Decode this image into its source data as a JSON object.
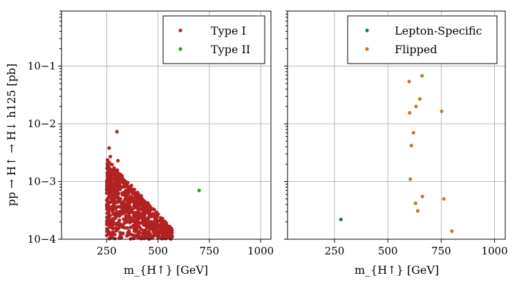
{
  "chart_data": [
    {
      "type": "scatter",
      "panel": "left",
      "xlabel": "m_{H↑} [GeV]",
      "ylabel": "pp → H↑ → H↓ h125 [pb]",
      "xscale": "linear",
      "yscale": "log",
      "xlim": [
        30,
        1050
      ],
      "ylim": [
        0.0001,
        0.9
      ],
      "xticks": [
        250,
        500,
        750,
        1000
      ],
      "xtick_labels": [
        "250",
        "500",
        "750",
        "1000"
      ],
      "yticks": [
        0.0001,
        0.001,
        0.01,
        0.1
      ],
      "ytick_labels": [
        "10−4",
        "10−3",
        "10−2",
        "10−1"
      ],
      "grid": true,
      "legend_position": "top-right",
      "series": [
        {
          "name": "Type I",
          "color": "#b22222",
          "density_region": {
            "x_min": 250,
            "x_max": 570,
            "y_max_at_xmin": 0.0025,
            "y_max_at_xmax": 0.00015,
            "n_points": 900
          },
          "outliers": [
            {
              "x": 300,
              "y": 0.0073
            },
            {
              "x": 262,
              "y": 0.0038
            },
            {
              "x": 268,
              "y": 0.0027
            },
            {
              "x": 305,
              "y": 0.0023
            },
            {
              "x": 258,
              "y": 0.0018
            }
          ]
        },
        {
          "name": "Type II",
          "color": "#2ca02c",
          "points": [
            {
              "x": 700,
              "y": 0.0007
            }
          ]
        }
      ]
    },
    {
      "type": "scatter",
      "panel": "right",
      "xlabel": "m_{H↑} [GeV]",
      "xscale": "linear",
      "yscale": "log",
      "xlim": [
        30,
        1050
      ],
      "ylim": [
        0.0001,
        0.9
      ],
      "xticks": [
        250,
        500,
        750,
        1000
      ],
      "xtick_labels": [
        "250",
        "500",
        "750",
        "1000"
      ],
      "grid": true,
      "legend_position": "top-right",
      "series": [
        {
          "name": "Lepton-Specific",
          "color": "#1f6b75",
          "points": [
            {
              "x": 280,
              "y": 0.00022
            }
          ]
        },
        {
          "name": "Flipped",
          "color": "#c8762d",
          "points": [
            {
              "x": 660,
              "y": 0.068
            },
            {
              "x": 600,
              "y": 0.054
            },
            {
              "x": 650,
              "y": 0.027
            },
            {
              "x": 632,
              "y": 0.02
            },
            {
              "x": 752,
              "y": 0.0165
            },
            {
              "x": 602,
              "y": 0.0155
            },
            {
              "x": 620,
              "y": 0.007
            },
            {
              "x": 610,
              "y": 0.0042
            },
            {
              "x": 605,
              "y": 0.0011
            },
            {
              "x": 662,
              "y": 0.00055
            },
            {
              "x": 762,
              "y": 0.0005
            },
            {
              "x": 630,
              "y": 0.00042
            },
            {
              "x": 640,
              "y": 0.00031
            },
            {
              "x": 800,
              "y": 0.000138
            }
          ]
        }
      ]
    }
  ]
}
